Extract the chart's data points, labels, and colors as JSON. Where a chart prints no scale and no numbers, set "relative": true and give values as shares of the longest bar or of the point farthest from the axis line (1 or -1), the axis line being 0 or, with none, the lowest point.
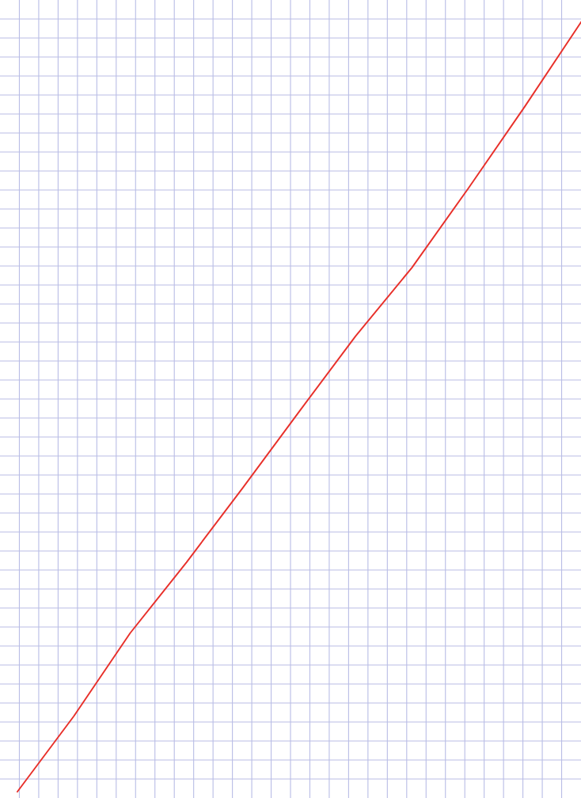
{
  "chart_data": {
    "type": "line",
    "relative": true,
    "categories": [
      null,
      null,
      null,
      null,
      null,
      null,
      null,
      null,
      null,
      null,
      null
    ],
    "series": [
      {
        "color": "#e8302a",
        "values": [
          0,
          0.098,
          0.206,
          0.298,
          0.395,
          0.494,
          0.592,
          0.681,
          0.784,
          0.89,
          1
        ]
      }
    ],
    "grid": true,
    "marker": "none",
    "line_style": "solid"
  }
}
